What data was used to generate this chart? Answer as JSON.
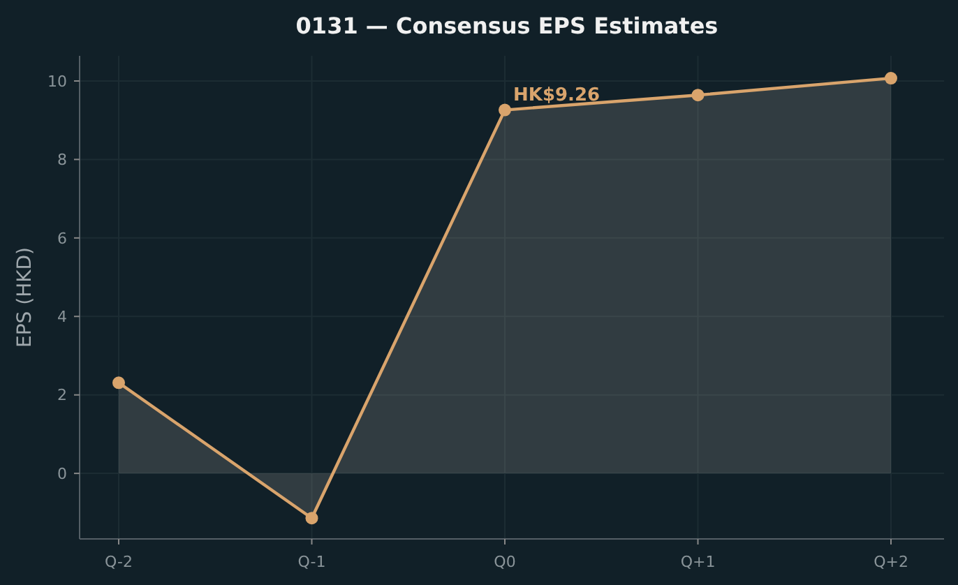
{
  "chart_data": {
    "type": "area",
    "title": "0131 — Consensus EPS Estimates",
    "ylabel": "EPS (HKD)",
    "categories": [
      "Q-2",
      "Q-1",
      "Q0",
      "Q+1",
      "Q+2"
    ],
    "series": [
      {
        "color": "#d9a46c",
        "values": [
          2.31,
          -1.14,
          9.26,
          9.64,
          10.07
        ]
      }
    ],
    "ylim": [
      -1.67,
      10.64
    ],
    "yticks": [
      0,
      2,
      4,
      6,
      8,
      10
    ],
    "grid": true,
    "marker": "circle",
    "line_style": "solid",
    "annotations": [
      {
        "text": "HK$9.26",
        "x": "Q0",
        "y": 9.26
      }
    ]
  }
}
